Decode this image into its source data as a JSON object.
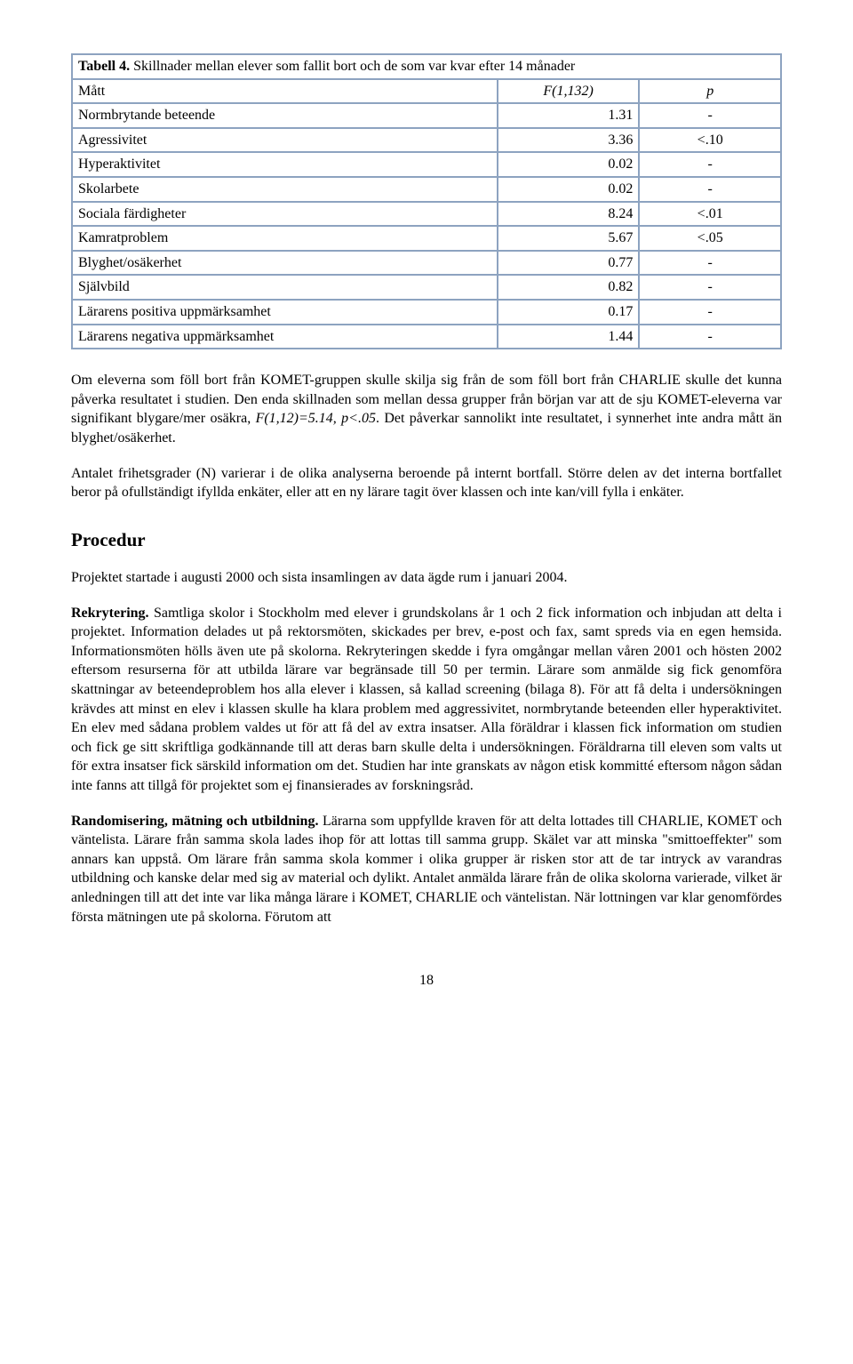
{
  "table": {
    "caption_bold": "Tabell 4.",
    "caption_rest": " Skillnader mellan elever som fallit bort och de som var kvar efter 14 månader",
    "header": {
      "c1": "Mått",
      "c2": "F(1,132)",
      "c3": "p"
    },
    "rows": [
      {
        "label": "Normbrytande beteende",
        "f": "1.31",
        "p": "-"
      },
      {
        "label": "Agressivitet",
        "f": "3.36",
        "p": "<.10"
      },
      {
        "label": "Hyperaktivitet",
        "f": "0.02",
        "p": "-"
      },
      {
        "label": "Skolarbete",
        "f": "0.02",
        "p": "-"
      },
      {
        "label": "Sociala färdigheter",
        "f": "8.24",
        "p": "<.01"
      },
      {
        "label": "Kamratproblem",
        "f": "5.67",
        "p": "<.05"
      },
      {
        "label": "Blyghet/osäkerhet",
        "f": "0.77",
        "p": "-"
      },
      {
        "label": "Självbild",
        "f": "0.82",
        "p": "-"
      },
      {
        "label": "Lärarens positiva uppmärksamhet",
        "f": "0.17",
        "p": "-"
      },
      {
        "label": "Lärarens negativa uppmärksamhet",
        "f": "1.44",
        "p": "-"
      }
    ],
    "border_color": "#8da3c0",
    "col_widths_pct": [
      60,
      20,
      20
    ]
  },
  "para1_a": "Om eleverna som föll bort från KOMET-gruppen skulle skilja sig från de som föll bort från CHARLIE skulle det kunna påverka resultatet i studien. Den enda skillnaden som mellan dessa grupper från början var att de sju KOMET-eleverna var signifikant blygare/mer osäkra, ",
  "para1_stat": "F(1,12)=5.14, p<.05",
  "para1_b": ". Det påverkar sannolikt inte resultatet, i synnerhet inte andra mått än blyghet/osäkerhet.",
  "para2": "Antalet frihetsgrader (N) varierar i de olika analyserna beroende på internt bortfall. Större delen av det interna bortfallet beror på ofullständigt ifyllda enkäter, eller att en ny lärare tagit över klassen och inte kan/vill fylla i enkäter.",
  "heading": "Procedur",
  "para3": "Projektet startade i augusti 2000 och sista insamlingen av data ägde rum i januari 2004.",
  "para4_lead": "Rekrytering.",
  "para4": " Samtliga skolor i Stockholm med elever i grundskolans år 1 och 2 fick information och inbjudan att delta i projektet. Information delades ut på rektorsmöten, skickades per brev, e-post och fax, samt spreds via en egen hemsida. Informationsmöten hölls även ute på skolorna. Rekryteringen skedde i fyra omgångar mellan våren 2001 och hösten 2002 eftersom resurserna för att utbilda lärare var begränsade till 50 per termin. Lärare som anmälde sig fick genomföra skattningar av beteendeproblem hos alla elever i klassen, så kallad screening (bilaga 8). För att få delta i undersökningen krävdes att minst en elev i klassen skulle ha klara problem med aggressivitet, normbrytande beteenden eller hyperaktivitet. En elev med sådana problem valdes ut för att få del av extra insatser. Alla föräldrar i klassen fick information om studien och fick ge sitt skriftliga godkännande till att deras barn skulle delta i undersökningen. Föräldrarna till eleven som valts ut för extra insatser fick särskild information om det. Studien har inte granskats av någon etisk kommitté eftersom någon sådan inte fanns att tillgå för projektet som ej finansierades av forskningsråd.",
  "para5_lead": "Randomisering, mätning och utbildning.",
  "para5": " Lärarna som uppfyllde kraven för att delta lottades till CHARLIE, KOMET och väntelista. Lärare från samma skola lades ihop för att lottas till samma grupp. Skälet var att minska \"smittoeffekter\" som annars kan uppstå. Om lärare från samma skola kommer i olika grupper är risken stor att de tar intryck av varandras utbildning och kanske delar med sig av material och dylikt. Antalet anmälda lärare från de olika skolorna varierade, vilket är anledningen till att det inte var lika många lärare i KOMET, CHARLIE och väntelistan. När lottningen var klar genomfördes första mätningen ute på skolorna. Förutom att",
  "page_number": "18"
}
